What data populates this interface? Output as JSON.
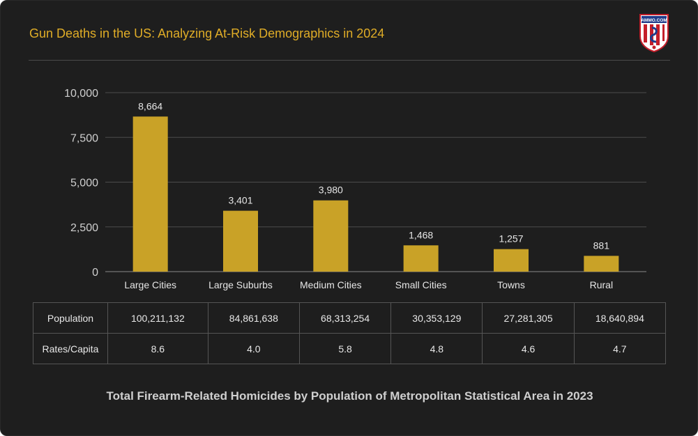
{
  "header": {
    "title": "Gun Deaths in the US: Analyzing At-Risk Demographics in 2024",
    "logo_text": "AMMO.COM"
  },
  "colors": {
    "bar": "#c9a227",
    "title": "#e0ad27",
    "background": "#1e1e1e"
  },
  "chart_data": {
    "type": "bar",
    "categories": [
      "Large Cities",
      "Large Suburbs",
      "Medium Cities",
      "Small Cities",
      "Towns",
      "Rural"
    ],
    "values": [
      8664,
      3401,
      3980,
      1468,
      1257,
      881
    ],
    "value_labels": [
      "8,664",
      "3,401",
      "3,980",
      "1,468",
      "1,257",
      "881"
    ],
    "ylim": [
      0,
      10000
    ],
    "yticks": [
      0,
      2500,
      5000,
      7500,
      10000
    ],
    "ytick_labels": [
      "0",
      "2,500",
      "5,000",
      "7,500",
      "10,000"
    ],
    "grid": true,
    "legend": "none"
  },
  "table": {
    "rows": [
      {
        "label": "Population",
        "cells": [
          "100,211,132",
          "84,861,638",
          "68,313,254",
          "30,353,129",
          "27,281,305",
          "18,640,894"
        ]
      },
      {
        "label": "Rates/Capita",
        "cells": [
          "8.6",
          "4.0",
          "5.8",
          "4.8",
          "4.6",
          "4.7"
        ]
      }
    ]
  },
  "caption": "Total Firearm-Related Homicides by Population of Metropolitan Statistical Area in 2023"
}
